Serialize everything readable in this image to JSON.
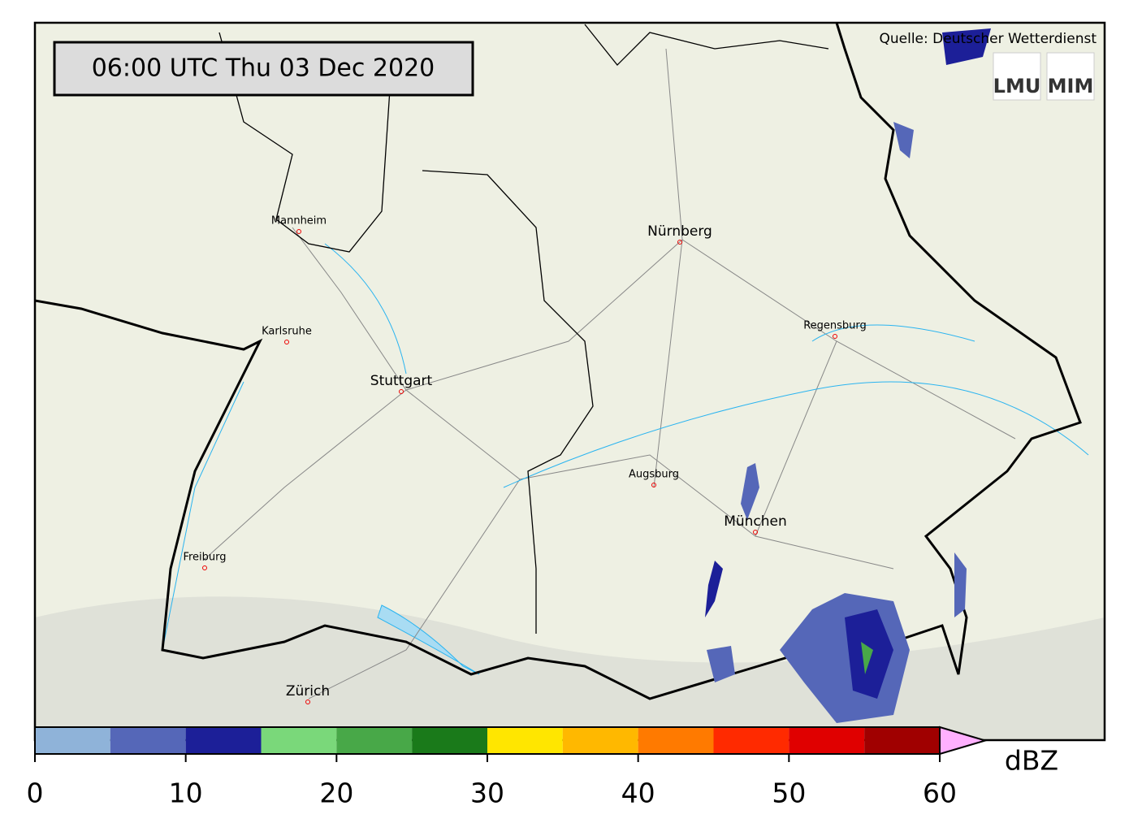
{
  "header": {
    "timestamp": "06:00 UTC  Thu 03 Dec 2020",
    "source": "Quelle: Deutscher Wetterdienst",
    "logos": [
      "LMU",
      "MIM"
    ]
  },
  "cities": [
    "Mannheim",
    "Nürnberg",
    "Karlsruhe",
    "Regensburg",
    "Stuttgart",
    "Augsburg",
    "München",
    "Freiburg",
    "Zürich"
  ],
  "colorbar": {
    "levels": [
      0,
      5,
      10,
      15,
      20,
      25,
      30,
      35,
      40,
      45,
      50,
      55,
      60
    ],
    "colors": [
      "#8fb3d9",
      "#5567b8",
      "#1c1f98",
      "#7ad87a",
      "#48a848",
      "#1a7a1a",
      "#ffe600",
      "#ffb800",
      "#ff7a00",
      "#ff2a00",
      "#e00000",
      "#a00000"
    ],
    "extend_color": "#ffb0ff",
    "ticks": [
      0,
      10,
      20,
      30,
      40,
      50,
      60
    ],
    "label": "dBZ"
  }
}
